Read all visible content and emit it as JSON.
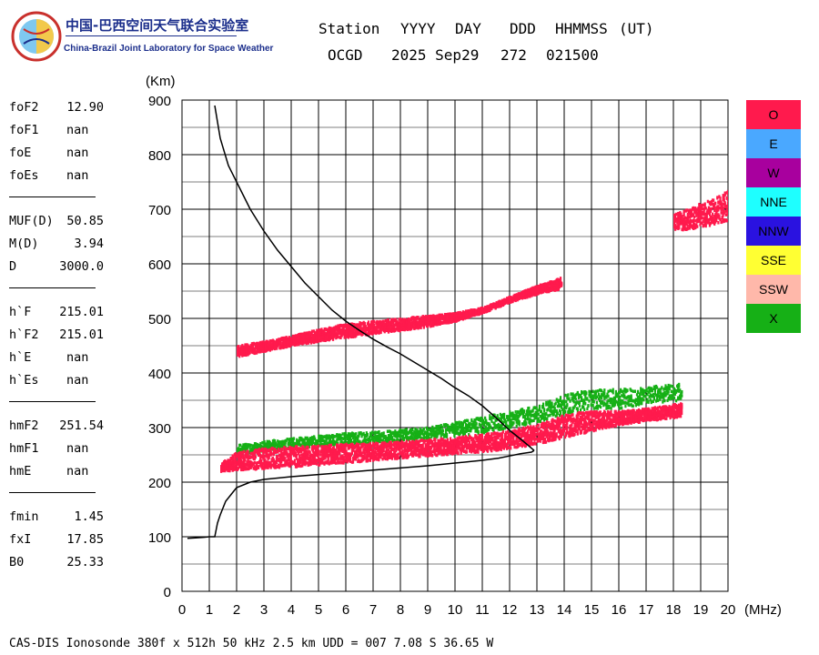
{
  "branding": {
    "org_cn": "中国-巴西空间天气联合实验室",
    "org_en": "China-Brazil Joint Laboratory for Space Weather"
  },
  "header": {
    "labels": [
      "Station",
      "YYYY",
      "DAY",
      "DDD",
      "HHMMSS",
      "(UT)"
    ],
    "station": "OCGD",
    "date": "2025 Sep29",
    "doy": "272",
    "time": "021500"
  },
  "params": [
    {
      "group": 1,
      "name": "foF2",
      "value": "12.90"
    },
    {
      "group": 1,
      "name": "foF1",
      "value": "nan"
    },
    {
      "group": 1,
      "name": "foE",
      "value": "nan"
    },
    {
      "group": 1,
      "name": "foEs",
      "value": "nan"
    },
    {
      "group": 2,
      "name": "MUF(D)",
      "value": "50.85"
    },
    {
      "group": 2,
      "name": "M(D)",
      "value": "3.94"
    },
    {
      "group": 2,
      "name": "D",
      "value": "3000.0"
    },
    {
      "group": 3,
      "name": "h`F",
      "value": "215.01"
    },
    {
      "group": 3,
      "name": "h`F2",
      "value": "215.01"
    },
    {
      "group": 3,
      "name": "h`E",
      "value": "nan"
    },
    {
      "group": 3,
      "name": "h`Es",
      "value": "nan"
    },
    {
      "group": 4,
      "name": "hmF2",
      "value": "251.54"
    },
    {
      "group": 4,
      "name": "hmF1",
      "value": "nan"
    },
    {
      "group": 4,
      "name": "hmE",
      "value": "nan"
    },
    {
      "group": 5,
      "name": "fmin",
      "value": "1.45"
    },
    {
      "group": 5,
      "name": "fxI",
      "value": "17.85"
    },
    {
      "group": 5,
      "name": "B0",
      "value": "25.33"
    }
  ],
  "legend": [
    {
      "label": "O",
      "color": "#ff1a4d"
    },
    {
      "label": "E",
      "color": "#4aa8ff"
    },
    {
      "label": "W",
      "color": "#a8009e"
    },
    {
      "label": "NNE",
      "color": "#1effff"
    },
    {
      "label": "NNW",
      "color": "#2a12e0"
    },
    {
      "label": "SSE",
      "color": "#ffff33"
    },
    {
      "label": "SSW",
      "color": "#ffb8aa"
    },
    {
      "label": "X",
      "color": "#16b016"
    }
  ],
  "footer": "CAS-DIS Ionosonde 380f x 512h 50 kHz 2.5 km UDD = 007 7.08 S 36.65 W",
  "chart_data": {
    "type": "scatter",
    "xlabel": "(MHz)",
    "ylabel": "(Km)",
    "xlim": [
      0,
      20
    ],
    "ylim": [
      0,
      900
    ],
    "xticks": [
      0,
      1,
      2,
      3,
      4,
      5,
      6,
      7,
      8,
      9,
      10,
      11,
      12,
      13,
      14,
      15,
      16,
      17,
      18,
      19,
      20
    ],
    "yticks": [
      0,
      100,
      200,
      300,
      400,
      500,
      600,
      700,
      800,
      900
    ],
    "grid": true,
    "legend_position": "right",
    "series": [
      {
        "name": "O",
        "color": "#ff1a4d",
        "traces": [
          {
            "label": "F-layer first hop",
            "x": [
              1.4,
              2,
              3,
              4,
              5,
              6,
              7,
              8,
              9,
              10,
              11,
              12,
              13,
              14,
              15,
              16,
              17,
              18.3
            ],
            "y_low": [
              220,
              222,
              225,
              228,
              232,
              236,
              240,
              244,
              248,
              252,
              256,
              262,
              270,
              282,
              294,
              305,
              312,
              320
            ],
            "y_high": [
              235,
              255,
              262,
              265,
              268,
              270,
              272,
              275,
              278,
              282,
              288,
              295,
              305,
              325,
              330,
              330,
              335,
              345
            ]
          },
          {
            "label": "F-layer second hop",
            "x": [
              2,
              3,
              4,
              5,
              6,
              7,
              8,
              9,
              10,
              11,
              12,
              13,
              13.9
            ],
            "y_low": [
              430,
              440,
              450,
              458,
              465,
              472,
              478,
              485,
              495,
              510,
              530,
              545,
              555
            ],
            "y_high": [
              450,
              458,
              468,
              480,
              490,
              495,
              500,
              505,
              510,
              520,
              540,
              560,
              575
            ]
          },
          {
            "label": "F-layer third hop",
            "x": [
              18,
              18.5,
              19,
              19.5,
              20
            ],
            "y_low": [
              660,
              663,
              668,
              672,
              678
            ],
            "y_high": [
              690,
              700,
              712,
              720,
              735
            ]
          }
        ]
      },
      {
        "name": "X",
        "color": "#16b016",
        "traces": [
          {
            "label": "X first hop",
            "x": [
              2,
              3,
              4,
              5,
              6,
              7,
              8,
              9,
              10,
              11,
              12,
              13,
              14,
              15,
              16,
              17,
              18.3
            ],
            "y_low": [
              250,
              258,
              262,
              266,
              270,
              272,
              276,
              280,
              285,
              290,
              300,
              310,
              325,
              335,
              335,
              345,
              350
            ],
            "y_high": [
              268,
              275,
              280,
              285,
              290,
              292,
              296,
              300,
              310,
              320,
              330,
              340,
              360,
              370,
              370,
              375,
              380
            ]
          }
        ]
      }
    ],
    "profile": {
      "label": "true height profile",
      "x": [
        0.2,
        0.5,
        0.8,
        1.0,
        1.2,
        1.3,
        1.4,
        1.6,
        2.0,
        2.5,
        3.0,
        4.0,
        5.0,
        6.0,
        7.0,
        8.0,
        9.0,
        10.0,
        11.0,
        11.6,
        12.0,
        12.4,
        12.8,
        12.9
      ],
      "y": [
        97,
        98,
        99,
        100,
        100,
        125,
        140,
        165,
        190,
        200,
        205,
        210,
        214,
        218,
        222,
        226,
        230,
        235,
        240,
        244,
        248,
        252,
        255,
        258
      ]
    },
    "virtual_height": {
      "label": "virtual height trace",
      "x": [
        1.2,
        1.4,
        1.7,
        2.0,
        2.5,
        3.0,
        3.5,
        4.0,
        4.5,
        5.0,
        5.5,
        6.0,
        6.5,
        7.0,
        7.5,
        8.0,
        8.5,
        9.0,
        9.5,
        10.0,
        10.5,
        11.0,
        11.5,
        12.0,
        12.5,
        12.9
      ],
      "y": [
        890,
        830,
        780,
        750,
        700,
        660,
        625,
        595,
        565,
        540,
        515,
        495,
        478,
        462,
        448,
        435,
        420,
        405,
        390,
        373,
        358,
        340,
        318,
        295,
        275,
        258
      ]
    }
  }
}
